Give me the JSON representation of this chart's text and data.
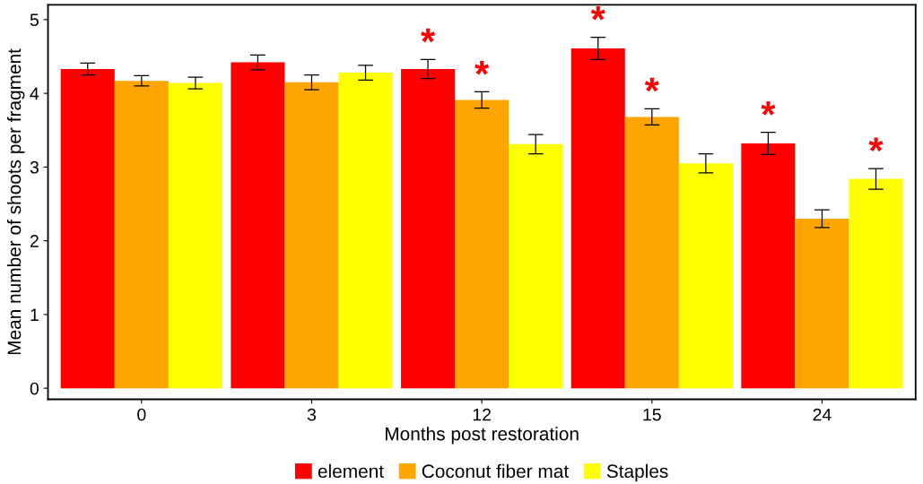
{
  "chart_data": {
    "type": "bar",
    "xlabel": "Months post restoration",
    "ylabel": "Mean number of shoots per fragment",
    "categories": [
      "0",
      "3",
      "12",
      "15",
      "24"
    ],
    "series": [
      {
        "name": "element",
        "color": "#ff0000",
        "values": [
          4.33,
          4.42,
          4.33,
          4.61,
          3.32
        ],
        "errors": [
          0.08,
          0.1,
          0.13,
          0.15,
          0.15
        ],
        "value_labels": [
          null,
          null,
          "*",
          "*",
          "*"
        ]
      },
      {
        "name": "Coconut fiber mat",
        "color": "#ffa500",
        "values": [
          4.17,
          4.15,
          3.91,
          3.68,
          2.3
        ],
        "errors": [
          0.07,
          0.1,
          0.11,
          0.11,
          0.12
        ],
        "value_labels": [
          null,
          null,
          "*",
          "*",
          null
        ]
      },
      {
        "name": "Staples",
        "color": "#ffff00",
        "values": [
          4.14,
          4.28,
          3.31,
          3.05,
          2.84
        ],
        "errors": [
          0.08,
          0.1,
          0.13,
          0.13,
          0.14
        ],
        "value_labels": [
          null,
          null,
          null,
          null,
          "*"
        ]
      }
    ],
    "ylim": [
      -0.15,
      5.2
    ],
    "yticks": [
      0,
      1,
      2,
      3,
      4,
      5
    ],
    "grid": false,
    "legend": "bottom"
  }
}
